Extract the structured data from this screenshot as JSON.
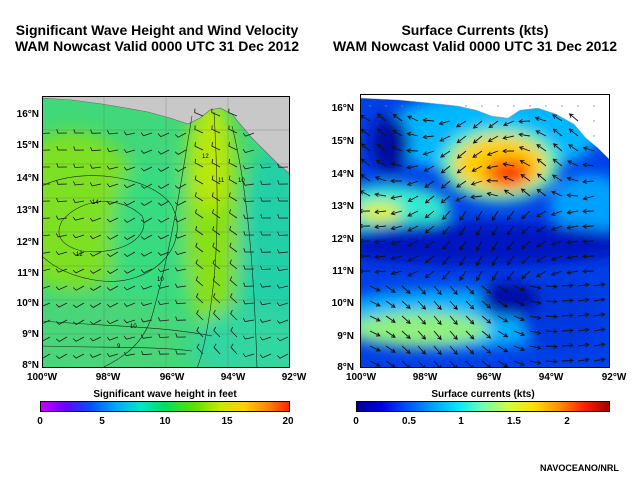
{
  "left_panel": {
    "title_line1": "Significant Wave Height and Wind Velocity",
    "title_line2": "WAM Nowcast Valid 0000 UTC 31 Dec 2012",
    "lat_labels": [
      "16°N",
      "15°N",
      "14°N",
      "13°N",
      "12°N",
      "11°N",
      "10°N",
      "9°N",
      "8°N"
    ],
    "lon_labels": [
      "100°W",
      "98°W",
      "96°W",
      "94°W",
      "92°W"
    ],
    "colorbar_title": "Significant wave height in feet",
    "colorbar_ticks": [
      "0",
      "5",
      "10",
      "15",
      "20"
    ],
    "contour_labels": [
      "14",
      "12",
      "10",
      "9",
      "10",
      "11",
      "12",
      "10"
    ]
  },
  "right_panel": {
    "title_line1": "Surface Currents (kts)",
    "title_line2": "WAM Nowcast Valid 0000 UTC 31 Dec 2012",
    "lat_labels": [
      "16°N",
      "15°N",
      "14°N",
      "13°N",
      "12°N",
      "11°N",
      "10°N",
      "9°N",
      "8°N"
    ],
    "lon_labels": [
      "100°W",
      "98°W",
      "96°W",
      "94°W",
      "92°W"
    ],
    "colorbar_title": "Surface currents (kts)",
    "colorbar_ticks": [
      "0",
      "0.5",
      "1",
      "1.5",
      "2"
    ]
  },
  "credit": "NAVOCEANO/NRL",
  "colors": {
    "land": "#c8c8c8",
    "wave_scale": [
      "#c800ff",
      "#6a00ff",
      "#0050ff",
      "#00a8ff",
      "#00e6c8",
      "#00e060",
      "#60e000",
      "#c8e800",
      "#ffd000",
      "#ff8000",
      "#ff2000"
    ],
    "current_scale": [
      "#00009a",
      "#0000e0",
      "#0050ff",
      "#00a0ff",
      "#00e8ff",
      "#70ffb0",
      "#d0ff40",
      "#ffe000",
      "#ff9000",
      "#ff2000",
      "#a00000"
    ]
  }
}
